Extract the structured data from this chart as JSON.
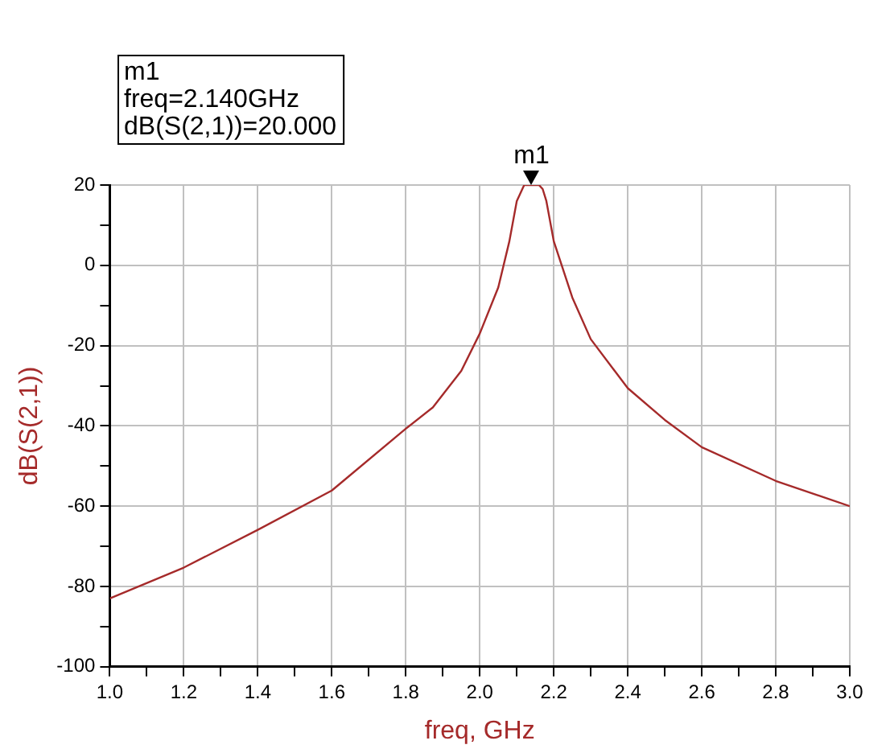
{
  "chart_data": {
    "type": "line",
    "xlabel": "freq, GHz",
    "ylabel": "dB(S(2,1))",
    "x": [
      1.0,
      1.2,
      1.4,
      1.6,
      1.8,
      1.873,
      1.95,
      2.0,
      2.05,
      2.08,
      2.1,
      2.12,
      2.14,
      2.16,
      2.17,
      2.18,
      2.2,
      2.25,
      2.3,
      2.4,
      2.5,
      2.6,
      2.8,
      3.0
    ],
    "series": [
      {
        "color": "#a52a2a",
        "values": [
          -83,
          -75.3,
          -65.9,
          -56.1,
          -40.7,
          -35.4,
          -26.3,
          -17,
          -5.5,
          6,
          16,
          20,
          20,
          20,
          19,
          16,
          6,
          -8,
          -18.4,
          -30.6,
          -38.5,
          -45.3,
          -53.7,
          -60
        ]
      }
    ],
    "xlim": [
      1.0,
      3.0
    ],
    "xticks": [
      {
        "value": 1,
        "label": "1.0"
      },
      {
        "value": 1.1,
        "label": null
      },
      1.2,
      {
        "value": 1.3,
        "label": null
      },
      1.4,
      {
        "value": 1.5,
        "label": null
      },
      1.6,
      {
        "value": 1.7,
        "label": null
      },
      1.8,
      {
        "value": 1.9,
        "label": null
      },
      {
        "value": 2,
        "label": "2.0"
      },
      {
        "value": 2.1,
        "label": null
      },
      2.2,
      {
        "value": 2.3,
        "label": null
      },
      2.4,
      {
        "value": 2.5,
        "label": null
      },
      2.6,
      {
        "value": 2.7,
        "label": null
      },
      2.8,
      {
        "value": 2.9,
        "label": null
      },
      {
        "value": 3,
        "label": "3.0"
      }
    ],
    "ylim": [
      -100,
      20
    ],
    "yticks": [
      -100,
      {
        "value": -90,
        "label": null
      },
      -80,
      {
        "value": -70,
        "label": null
      },
      -60,
      {
        "value": -50,
        "label": null
      },
      -40,
      {
        "value": -30,
        "label": null
      },
      -20,
      {
        "value": -10,
        "label": null
      },
      0,
      {
        "value": 10,
        "label": null
      },
      20
    ],
    "grid": true,
    "legend": false,
    "marker": "none",
    "line_style": "solid",
    "annotations": [
      {
        "text": "m1",
        "x": 2.14,
        "y": 20
      },
      "m1\nfreq=2.140GHz\ndB(S(2,1))=20.000"
    ]
  }
}
